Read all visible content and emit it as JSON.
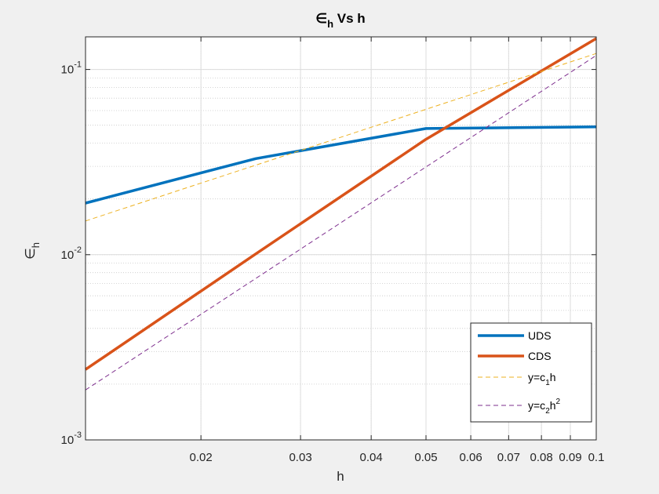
{
  "chart_data": {
    "type": "line",
    "title": {
      "main": "∈",
      "sub": "h",
      "rest": " Vs h"
    },
    "xlabel": "h",
    "ylabel": {
      "main": "∈",
      "sub": "h"
    },
    "xscale": "log",
    "yscale": "log",
    "xlim": [
      0.0125,
      0.1
    ],
    "ylim": [
      0.001,
      0.15
    ],
    "grid": true,
    "minor_grid": true,
    "legend_position": "bottom-right",
    "x_ticks": [
      {
        "value": 0.02,
        "label": "0.02"
      },
      {
        "value": 0.03,
        "label": "0.03"
      },
      {
        "value": 0.04,
        "label": "0.04"
      },
      {
        "value": 0.05,
        "label": "0.05"
      },
      {
        "value": 0.06,
        "label": "0.06"
      },
      {
        "value": 0.07,
        "label": "0.07"
      },
      {
        "value": 0.08,
        "label": "0.08"
      },
      {
        "value": 0.09,
        "label": "0.09"
      },
      {
        "value": 0.1,
        "label": "0.1"
      }
    ],
    "y_ticks": [
      {
        "value": 0.001,
        "base": "10",
        "exp": "-3"
      },
      {
        "value": 0.01,
        "base": "10",
        "exp": "-2"
      },
      {
        "value": 0.1,
        "base": "10",
        "exp": "-1"
      }
    ],
    "series": [
      {
        "name": "UDS",
        "color": "#0072BD",
        "width": 3.5,
        "dash": "",
        "legend": {
          "main": "UDS"
        },
        "x": [
          0.0125,
          0.025,
          0.05,
          0.1
        ],
        "y": [
          0.019,
          0.033,
          0.048,
          0.049
        ]
      },
      {
        "name": "CDS",
        "color": "#D95319",
        "width": 3.5,
        "dash": "",
        "legend": {
          "main": "CDS"
        },
        "x": [
          0.0125,
          0.025,
          0.05,
          0.1
        ],
        "y": [
          0.0024,
          0.0101,
          0.042,
          0.147
        ]
      },
      {
        "name": "y=c1h",
        "color": "#EDB120",
        "width": 1,
        "dash": "6,4",
        "legend": {
          "main": "y=c",
          "sub": "1",
          "tail": "h"
        },
        "x": [
          0.0125,
          0.1
        ],
        "y": [
          0.0152,
          0.122
        ]
      },
      {
        "name": "y=c2h2",
        "color": "#7E2F8E",
        "width": 1,
        "dash": "6,4",
        "legend": {
          "main": "y=c",
          "sub": "2",
          "tail": "h",
          "sup": "2"
        },
        "x": [
          0.0125,
          0.1
        ],
        "y": [
          0.00186,
          0.119
        ]
      }
    ]
  }
}
